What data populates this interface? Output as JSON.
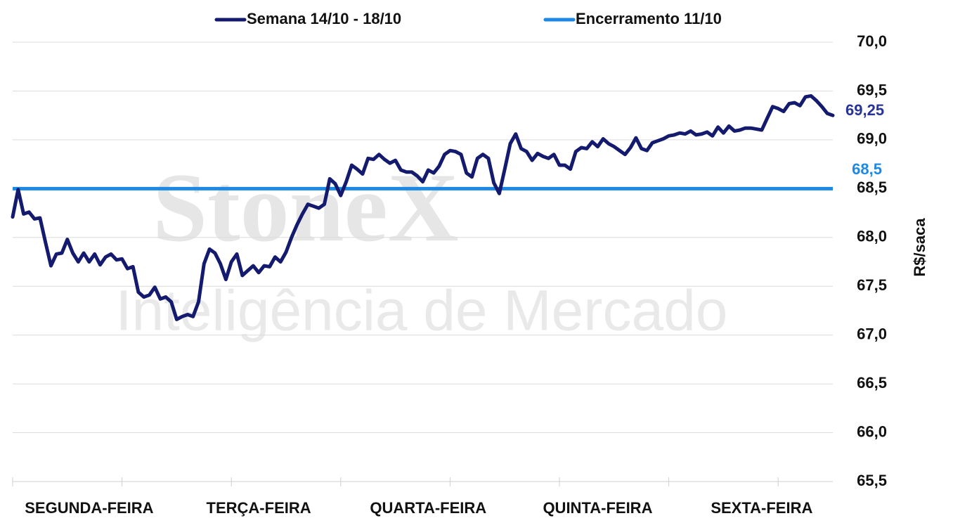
{
  "chart_data": {
    "type": "line",
    "series": [
      {
        "name": "Semana 14/10 - 18/10",
        "color": "#141b6e",
        "last_value_label": "69,25",
        "values": [
          68.21,
          68.49,
          68.24,
          68.26,
          68.19,
          68.2,
          67.95,
          67.71,
          67.83,
          67.84,
          67.98,
          67.84,
          67.75,
          67.84,
          67.75,
          67.83,
          67.72,
          67.8,
          67.83,
          67.77,
          67.78,
          67.68,
          67.7,
          67.44,
          67.39,
          67.41,
          67.49,
          67.37,
          67.39,
          67.34,
          67.16,
          67.19,
          67.21,
          67.19,
          67.34,
          67.73,
          67.88,
          67.84,
          67.73,
          67.57,
          67.75,
          67.83,
          67.61,
          67.66,
          67.71,
          67.64,
          67.71,
          67.7,
          67.8,
          67.75,
          67.85,
          68.0,
          68.13,
          68.24,
          68.34,
          68.32,
          68.3,
          68.34,
          68.6,
          68.55,
          68.43,
          68.57,
          68.74,
          68.7,
          68.65,
          68.81,
          68.8,
          68.85,
          68.8,
          68.76,
          68.79,
          68.69,
          68.67,
          68.67,
          68.63,
          68.57,
          68.69,
          68.66,
          68.73,
          68.85,
          68.89,
          68.88,
          68.85,
          68.66,
          68.62,
          68.81,
          68.85,
          68.81,
          68.56,
          68.45,
          68.7,
          68.96,
          69.06,
          68.91,
          68.88,
          68.79,
          68.86,
          68.83,
          68.81,
          68.85,
          68.74,
          68.74,
          68.7,
          68.88,
          68.92,
          68.91,
          68.98,
          68.93,
          69.01,
          68.96,
          68.93,
          68.89,
          68.85,
          68.92,
          69.02,
          68.91,
          68.89,
          68.97,
          68.99,
          69.01,
          69.04,
          69.05,
          69.07,
          69.06,
          69.09,
          69.05,
          69.06,
          69.08,
          69.04,
          69.13,
          69.07,
          69.14,
          69.09,
          69.1,
          69.12,
          69.12,
          69.11,
          69.1,
          69.22,
          69.34,
          69.32,
          69.29,
          69.37,
          69.38,
          69.35,
          69.44,
          69.45,
          69.4,
          69.34,
          69.27,
          69.25
        ]
      }
    ],
    "reference": {
      "name": "Encerramento 11/10",
      "value": 68.5,
      "value_label": "68,5",
      "color": "#1e88e5"
    },
    "xlim": [
      0,
      150
    ],
    "xticks": [
      0,
      20,
      40,
      60,
      80,
      100,
      120,
      140
    ],
    "xlabels": [
      {
        "value": 14,
        "label": "SEGUNDA-FEIRA"
      },
      {
        "value": 45,
        "label": "TERÇA-FEIRA"
      },
      {
        "value": 76,
        "label": "QUARTA-FEIRA"
      },
      {
        "value": 107,
        "label": "QUINTA-FEIRA"
      },
      {
        "value": 137,
        "label": "SEXTA-FEIRA"
      }
    ],
    "ylim": [
      65.5,
      70
    ],
    "yticks": [
      {
        "value": 65.5,
        "label": "65,5"
      },
      {
        "value": 66,
        "label": "66,0"
      },
      {
        "value": 66.5,
        "label": "66,5"
      },
      {
        "value": 67,
        "label": "67,0"
      },
      {
        "value": 67.5,
        "label": "67,5"
      },
      {
        "value": 68,
        "label": "68,0"
      },
      {
        "value": 68.5,
        "label": "68,5"
      },
      {
        "value": 69,
        "label": "69,0"
      },
      {
        "value": 69.5,
        "label": "69,5"
      },
      {
        "value": 70,
        "label": "70,0"
      }
    ],
    "y_label": "R$/saca",
    "grid": true,
    "watermark": [
      "StoneX",
      "Inteligência de Mercado"
    ]
  }
}
